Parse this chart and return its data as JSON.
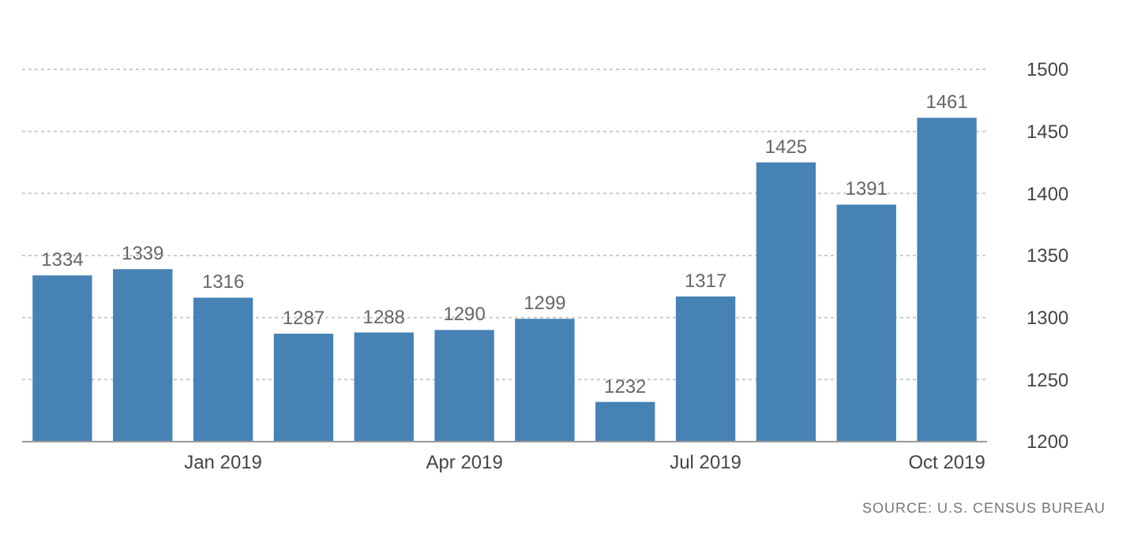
{
  "chart_data": {
    "type": "bar",
    "categories": [
      null,
      null,
      "Jan 2019",
      null,
      null,
      "Apr 2019",
      null,
      null,
      "Jul 2019",
      null,
      null,
      "Oct 2019"
    ],
    "values": [
      1334,
      1339,
      1316,
      1287,
      1288,
      1290,
      1299,
      1232,
      1317,
      1425,
      1391,
      1461
    ],
    "color": "#4682b4",
    "ylim": [
      1200,
      1500
    ],
    "yticks": [
      1200,
      1250,
      1300,
      1350,
      1400,
      1450,
      1500
    ],
    "grid": "y",
    "data_labels": true,
    "annotations": [
      "SOURCE: U.S. CENSUS BUREAU"
    ]
  }
}
